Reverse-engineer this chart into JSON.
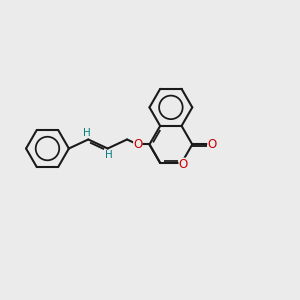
{
  "bg_color": "#ebebeb",
  "bond_color": "#1a1a1a",
  "o_color": "#cc0000",
  "h_color": "#008080",
  "lw": 1.5,
  "figsize": [
    3.0,
    3.0
  ],
  "dpi": 100,
  "xlim": [
    0,
    10
  ],
  "ylim": [
    0,
    10
  ]
}
